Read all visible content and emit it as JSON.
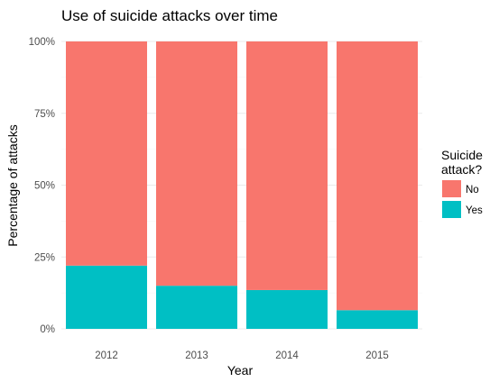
{
  "chart_data": {
    "type": "bar",
    "stacked": true,
    "normalized": true,
    "title": "Use of suicide attacks over time",
    "xlabel": "Year",
    "ylabel": "Percentage of attacks",
    "categories": [
      "2012",
      "2013",
      "2014",
      "2015"
    ],
    "y_ticks": [
      "0%",
      "25%",
      "50%",
      "75%",
      "100%"
    ],
    "ylim": [
      0,
      1
    ],
    "grid": true,
    "legend": {
      "title_lines": [
        "Suicide",
        "attack?"
      ],
      "placement": "right",
      "entries": [
        {
          "label": "No",
          "color": "#F8766D"
        },
        {
          "label": "Yes",
          "color": "#00BFC4"
        }
      ]
    },
    "series": [
      {
        "name": "Yes",
        "color": "#00BFC4",
        "values": [
          0.22,
          0.15,
          0.135,
          0.065
        ]
      },
      {
        "name": "No",
        "color": "#F8766D",
        "values": [
          0.78,
          0.85,
          0.865,
          0.935
        ]
      }
    ]
  }
}
